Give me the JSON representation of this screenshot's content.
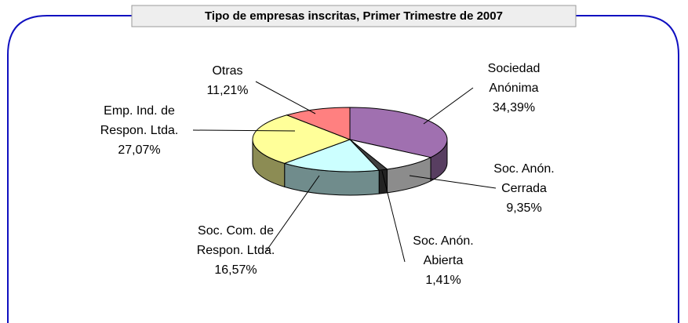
{
  "chart_data": {
    "type": "pie",
    "title": "Tipo de empresas inscritas, Primer Trimestre de 2007",
    "categories": [
      "Sociedad Anónima",
      "Soc. Anón. Cerrada",
      "Soc. Anón. Abierta",
      "Soc. Com. de Respon. Ltda.",
      "Emp. Ind. de Respon. Ltda.",
      "Otras"
    ],
    "values": [
      34.39,
      9.35,
      1.41,
      16.57,
      27.07,
      11.21
    ],
    "value_labels": [
      "34,39%",
      "9,35%",
      "1,41%",
      "16,57%",
      "27,07%",
      "11,21%"
    ],
    "colors": [
      "#a070b0",
      "#ffffff",
      "#404040",
      "#ccffff",
      "#ffff99",
      "#ff8080"
    ]
  }
}
